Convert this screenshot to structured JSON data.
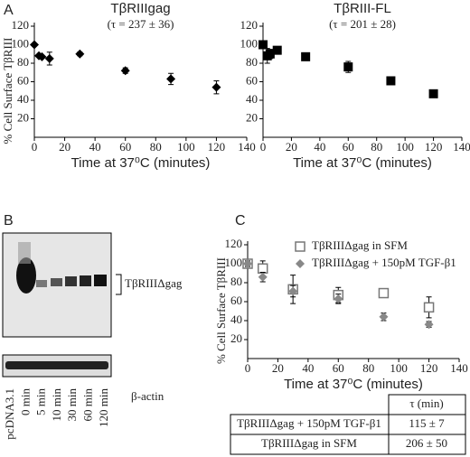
{
  "panel_labels": [
    "A",
    "B",
    "C"
  ],
  "chart_data": [
    {
      "type": "scatter",
      "title": "TβRIIIgag",
      "subtitle": "(τ = 237 ± 36)",
      "xlabel": "Time at 37⁰C (minutes)",
      "ylabel": "% Cell Surface TβRIII",
      "x": [
        0,
        3,
        5,
        10,
        30,
        60,
        90,
        120
      ],
      "series": [
        {
          "color": "#000000",
          "marker": "diamond",
          "values": [
            100,
            88,
            87,
            85,
            90,
            72,
            63,
            54
          ],
          "errors": [
            null,
            1,
            1,
            7,
            2,
            3,
            6,
            7
          ]
        }
      ],
      "xlim": [
        0,
        140
      ],
      "xticks": [
        0,
        20,
        40,
        60,
        80,
        100,
        120,
        140
      ],
      "ylim": [
        0,
        120
      ],
      "yticks": [
        20,
        40,
        60,
        80,
        100,
        120
      ]
    },
    {
      "type": "scatter",
      "title": "TβRIII-FL",
      "subtitle": "(τ = 201 ± 28)",
      "xlabel": "Time at 37⁰C (minutes)",
      "x": [
        0,
        3,
        5,
        10,
        30,
        60,
        90,
        120
      ],
      "series": [
        {
          "color": "#000000",
          "marker": "square",
          "values": [
            100,
            88,
            90,
            94,
            87,
            76,
            61,
            47
          ],
          "errors": [
            3,
            8,
            5,
            3,
            4,
            6,
            3,
            3
          ]
        }
      ],
      "xlim": [
        0,
        140
      ],
      "xticks": [
        0,
        20,
        40,
        60,
        80,
        100,
        120,
        140
      ],
      "ylim": [
        0,
        120
      ],
      "yticks": [
        20,
        40,
        60,
        80,
        100,
        120
      ]
    },
    {
      "type": "scatter",
      "xlabel": "Time at 37⁰C (minutes)",
      "ylabel": "% Cell Surface TβRIII",
      "x": [
        0,
        10,
        30,
        60,
        90,
        120
      ],
      "series": [
        {
          "name": "TβRIIIΔgag in SFM",
          "color": "#777777",
          "marker": "open-square",
          "values": [
            100,
            95,
            73,
            67,
            69,
            54
          ],
          "errors": [
            3,
            8,
            15,
            8,
            4,
            11
          ]
        },
        {
          "name": "TβRIIIΔgag + 150pM TGF-β1",
          "color": "#888888",
          "marker": "diamond",
          "values": [
            100,
            86,
            71,
            63,
            44,
            36
          ],
          "errors": [
            3,
            5,
            6,
            5,
            4,
            3
          ]
        }
      ],
      "xlim": [
        0,
        140
      ],
      "xticks": [
        0,
        20,
        40,
        60,
        80,
        100,
        120,
        140
      ],
      "ylim": [
        0,
        120
      ],
      "yticks": [
        20,
        40,
        60,
        80,
        100,
        120
      ]
    }
  ],
  "blot": {
    "band_label": "TβRIIIΔgag",
    "loading_label": "β-actin",
    "lanes": [
      "pcDNA3.1",
      "0 min",
      "5 min",
      "10 min",
      "30 min",
      "60 min",
      "120 min"
    ]
  },
  "table": {
    "header": "τ (min)",
    "rows": [
      [
        "TβRIIIΔgag + 150pM TGF-β1",
        "115 ± 7"
      ],
      [
        "TβRIIIΔgag in SFM",
        "206 ± 50"
      ]
    ]
  }
}
